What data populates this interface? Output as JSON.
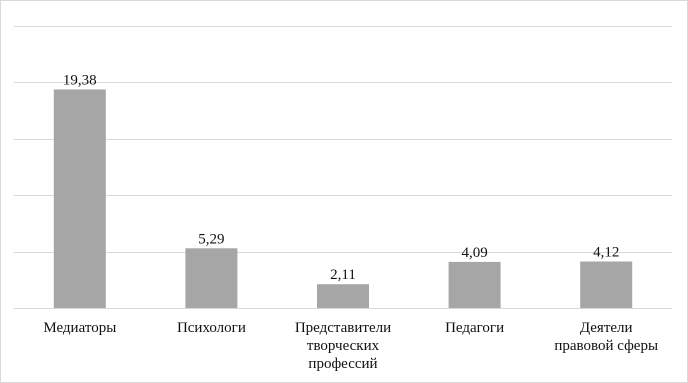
{
  "chart_data": {
    "type": "bar",
    "categories": [
      [
        "Медиаторы"
      ],
      [
        "Психологи"
      ],
      [
        "Представители",
        "творческих",
        "профессий"
      ],
      [
        "Педагоги"
      ],
      [
        "Деятели",
        "правовой сферы"
      ]
    ],
    "values": [
      19.38,
      5.29,
      2.11,
      4.09,
      4.12
    ],
    "value_labels": [
      "19,38",
      "5,29",
      "2,11",
      "4,09",
      "4,12"
    ],
    "ylim": [
      0,
      25
    ],
    "y_step": 5,
    "grid": true,
    "legend": "none",
    "title": "",
    "xlabel": "",
    "ylabel": "",
    "colors": {
      "bar": "#a6a6a6",
      "grid": "#d9d9d9",
      "axis": "#d9d9d9",
      "border": "#d9d9d9",
      "text": "#111111"
    }
  }
}
